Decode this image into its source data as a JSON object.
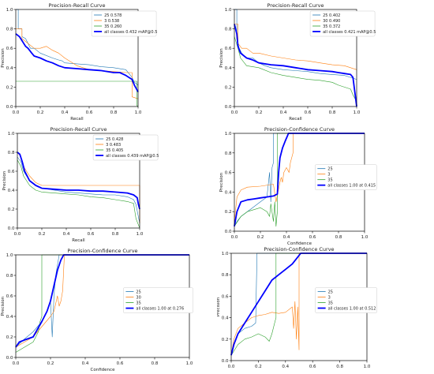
{
  "chart_data": [
    {
      "type": "line",
      "title": "Precision-Recall Curve",
      "xlabel": "Recall",
      "ylabel": "Precision",
      "xlim": [
        0,
        1
      ],
      "ylim": [
        0,
        1
      ],
      "xticks": [
        "0.0",
        "0.2",
        "0.4",
        "0.6",
        "0.8",
        "1.0"
      ],
      "yticks": [
        "0.0",
        "0.2",
        "0.4",
        "0.6",
        "0.8",
        "1.0"
      ],
      "legend_position": "top-right",
      "grid": false,
      "series": [
        {
          "name": "25 0.578",
          "color": "#1f77b4",
          "width": 0.6,
          "x": [
            0,
            0.02,
            0.02,
            0.05,
            0.05,
            0.08,
            0.1,
            0.12,
            0.15,
            0.2,
            0.3,
            0.35,
            0.38,
            0.4,
            0.5,
            0.6,
            0.7,
            0.8,
            0.9,
            0.95,
            0.97,
            1.0
          ],
          "y": [
            1.0,
            1.0,
            0.8,
            0.8,
            0.72,
            0.7,
            0.65,
            0.6,
            0.6,
            0.55,
            0.5,
            0.48,
            0.47,
            0.45,
            0.44,
            0.43,
            0.41,
            0.4,
            0.38,
            0.3,
            0.25,
            0.22
          ]
        },
        {
          "name": "3 0.538",
          "color": "#ff7f0e",
          "width": 0.6,
          "x": [
            0,
            0.05,
            0.05,
            0.1,
            0.15,
            0.2,
            0.25,
            0.3,
            0.35,
            0.4,
            0.5,
            0.6,
            0.7,
            0.8,
            0.9,
            0.95,
            0.95,
            1.0
          ],
          "y": [
            0.8,
            0.8,
            0.7,
            0.65,
            0.6,
            0.6,
            0.62,
            0.58,
            0.55,
            0.5,
            0.42,
            0.38,
            0.37,
            0.36,
            0.35,
            0.35,
            0.1,
            0.08
          ]
        },
        {
          "name": "35 0.260",
          "color": "#2ca02c",
          "width": 0.6,
          "x": [
            0,
            0.99,
            0.99,
            1.0
          ],
          "y": [
            0.26,
            0.26,
            0.01,
            0.0
          ]
        },
        {
          "name": "all classes 0.432 mAP@0.5",
          "color": "#0000ff",
          "width": 1.8,
          "x": [
            0,
            0.03,
            0.05,
            0.08,
            0.1,
            0.13,
            0.15,
            0.2,
            0.25,
            0.3,
            0.35,
            0.4,
            0.5,
            0.6,
            0.7,
            0.8,
            0.85,
            0.9,
            0.95,
            0.97,
            1.0
          ],
          "y": [
            0.75,
            0.72,
            0.68,
            0.62,
            0.6,
            0.55,
            0.52,
            0.5,
            0.47,
            0.45,
            0.42,
            0.4,
            0.39,
            0.38,
            0.37,
            0.35,
            0.35,
            0.32,
            0.28,
            0.22,
            0.15
          ]
        }
      ]
    },
    {
      "type": "line",
      "title": "Precision-Recall Curve",
      "xlabel": "Recall",
      "ylabel": "Precision",
      "xlim": [
        0,
        1
      ],
      "ylim": [
        0,
        1
      ],
      "xticks": [
        "0.0",
        "0.2",
        "0.4",
        "0.6",
        "0.8",
        "1.0"
      ],
      "yticks": [
        "0.0",
        "0.2",
        "0.4",
        "0.6",
        "0.8",
        "1.0"
      ],
      "legend_position": "top-right",
      "grid": false,
      "series": [
        {
          "name": "25 0.402",
          "color": "#1f77b4",
          "width": 0.6,
          "x": [
            0,
            0.02,
            0.02,
            0.04,
            0.06,
            0.1,
            0.15,
            0.2,
            0.25,
            0.3,
            0.4,
            0.5,
            0.6,
            0.7,
            0.8,
            0.9,
            0.95,
            1.0
          ],
          "y": [
            1.0,
            1.0,
            0.7,
            0.6,
            0.55,
            0.5,
            0.5,
            0.45,
            0.42,
            0.4,
            0.38,
            0.37,
            0.36,
            0.34,
            0.33,
            0.32,
            0.3,
            0.28
          ]
        },
        {
          "name": "30 0.490",
          "color": "#ff7f0e",
          "width": 0.6,
          "x": [
            0,
            0.03,
            0.03,
            0.06,
            0.1,
            0.15,
            0.2,
            0.3,
            0.4,
            0.5,
            0.6,
            0.7,
            0.8,
            0.9,
            0.95,
            1.0
          ],
          "y": [
            0.85,
            0.85,
            0.65,
            0.6,
            0.6,
            0.55,
            0.55,
            0.52,
            0.5,
            0.48,
            0.47,
            0.45,
            0.43,
            0.42,
            0.4,
            0.38
          ]
        },
        {
          "name": "35 0.372",
          "color": "#2ca02c",
          "width": 0.6,
          "x": [
            0,
            0.03,
            0.05,
            0.1,
            0.2,
            0.3,
            0.4,
            0.5,
            0.6,
            0.7,
            0.8,
            0.85,
            0.9,
            0.95,
            0.97,
            1.0
          ],
          "y": [
            0.72,
            0.6,
            0.5,
            0.42,
            0.4,
            0.35,
            0.32,
            0.3,
            0.28,
            0.27,
            0.25,
            0.22,
            0.2,
            0.18,
            0.12,
            0.05
          ]
        },
        {
          "name": "all classes 0.421 mAP@0.5",
          "color": "#0000ff",
          "width": 1.8,
          "x": [
            0,
            0.02,
            0.03,
            0.05,
            0.1,
            0.15,
            0.2,
            0.3,
            0.4,
            0.5,
            0.6,
            0.7,
            0.8,
            0.85,
            0.9,
            0.95,
            0.97,
            1.0
          ],
          "y": [
            0.85,
            0.75,
            0.62,
            0.55,
            0.5,
            0.48,
            0.45,
            0.43,
            0.42,
            0.4,
            0.38,
            0.37,
            0.36,
            0.35,
            0.34,
            0.33,
            0.3,
            0.0
          ]
        }
      ]
    },
    {
      "type": "line",
      "title": "Precision-Recall Curve",
      "xlabel": "Recall",
      "ylabel": "Precision",
      "xlim": [
        0,
        1
      ],
      "ylim": [
        0,
        1
      ],
      "xticks": [
        "0.0",
        "0.2",
        "0.4",
        "0.6",
        "0.8",
        "1.0"
      ],
      "yticks": [
        "0.0",
        "0.2",
        "0.4",
        "0.6",
        "0.8",
        "1.0"
      ],
      "legend_position": "top-right",
      "grid": false,
      "series": [
        {
          "name": "25 0.428",
          "color": "#1f77b4",
          "width": 0.6,
          "x": [
            0,
            0.03,
            0.05,
            0.1,
            0.15,
            0.2,
            0.3,
            0.4,
            0.5,
            0.6,
            0.7,
            0.8,
            0.9,
            0.95,
            0.97,
            1.0
          ],
          "y": [
            0.75,
            0.7,
            0.6,
            0.5,
            0.45,
            0.42,
            0.4,
            0.38,
            0.37,
            0.36,
            0.35,
            0.35,
            0.33,
            0.3,
            0.25,
            0.05
          ]
        },
        {
          "name": "3 0.483",
          "color": "#ff7f0e",
          "width": 0.6,
          "x": [
            0,
            0.03,
            0.05,
            0.1,
            0.15,
            0.2,
            0.3,
            0.4,
            0.5,
            0.6,
            0.7,
            0.8,
            0.9,
            1.0,
            1.0
          ],
          "y": [
            0.8,
            0.75,
            0.65,
            0.55,
            0.48,
            0.45,
            0.45,
            0.45,
            0.45,
            0.45,
            0.45,
            0.45,
            0.45,
            0.45,
            0.05
          ]
        },
        {
          "name": "35 0.405",
          "color": "#2ca02c",
          "width": 0.6,
          "x": [
            0,
            0.03,
            0.05,
            0.1,
            0.15,
            0.2,
            0.3,
            0.4,
            0.5,
            0.6,
            0.7,
            0.8,
            0.9,
            0.95,
            0.97,
            1.0
          ],
          "y": [
            0.72,
            0.65,
            0.55,
            0.45,
            0.4,
            0.38,
            0.37,
            0.36,
            0.35,
            0.33,
            0.32,
            0.3,
            0.28,
            0.26,
            0.1,
            0.0
          ]
        },
        {
          "name": "all classes 0.439 mAP@0.5",
          "color": "#0000ff",
          "width": 1.8,
          "x": [
            0,
            0.02,
            0.04,
            0.06,
            0.1,
            0.15,
            0.2,
            0.3,
            0.4,
            0.5,
            0.6,
            0.7,
            0.8,
            0.9,
            0.95,
            0.98,
            0.99,
            1.0
          ],
          "y": [
            0.8,
            0.78,
            0.7,
            0.6,
            0.5,
            0.45,
            0.42,
            0.41,
            0.4,
            0.4,
            0.39,
            0.39,
            0.38,
            0.37,
            0.35,
            0.32,
            0.25,
            0.2
          ]
        }
      ]
    },
    {
      "type": "line",
      "title": "Precision-Confidence Curve",
      "xlabel": "Confidence",
      "ylabel": "Precision",
      "xlim": [
        0,
        1
      ],
      "ylim": [
        0,
        1
      ],
      "xticks": [
        "0.0",
        "0.2",
        "0.4",
        "0.6",
        "0.8",
        "1.0"
      ],
      "yticks": [
        "0.0",
        "0.2",
        "0.4",
        "0.6",
        "0.8",
        "1.0"
      ],
      "legend_position": "right",
      "grid": false,
      "series": [
        {
          "name": "25",
          "color": "#1f77b4",
          "width": 0.6,
          "x": [
            0,
            0.02,
            0.05,
            0.1,
            0.15,
            0.2,
            0.25,
            0.27,
            0.28,
            0.29,
            0.3,
            0.3,
            0.32,
            0.35,
            0.4,
            1.0
          ],
          "y": [
            0.05,
            0.1,
            0.15,
            0.2,
            0.25,
            0.3,
            0.35,
            0.6,
            0.3,
            0.65,
            0.7,
            1.0,
            1.0,
            1.0,
            1.0,
            1.0
          ]
        },
        {
          "name": "3",
          "color": "#ff7f0e",
          "width": 0.6,
          "x": [
            0,
            0.02,
            0.05,
            0.1,
            0.2,
            0.3,
            0.32,
            0.35,
            0.36,
            0.37,
            0.38,
            0.4,
            0.42,
            0.43,
            0.45,
            0.45,
            1.0
          ],
          "y": [
            0.1,
            0.35,
            0.42,
            0.45,
            0.46,
            0.48,
            0.3,
            0.5,
            0.55,
            0.5,
            0.6,
            0.65,
            0.6,
            0.7,
            0.8,
            1.0,
            1.0
          ]
        },
        {
          "name": "35",
          "color": "#2ca02c",
          "width": 0.6,
          "x": [
            0,
            0.05,
            0.1,
            0.15,
            0.2,
            0.25,
            0.27,
            0.28,
            0.3,
            0.31,
            0.32,
            0.33,
            0.33,
            1.0
          ],
          "y": [
            0.05,
            0.15,
            0.2,
            0.22,
            0.24,
            0.2,
            0.15,
            0.28,
            0.1,
            0.3,
            0.05,
            0.2,
            1.0,
            1.0
          ]
        },
        {
          "name": "all classes 1.00 at 0.415",
          "color": "#0000ff",
          "width": 1.8,
          "x": [
            0,
            0.02,
            0.05,
            0.1,
            0.15,
            0.2,
            0.25,
            0.3,
            0.33,
            0.34,
            0.35,
            0.37,
            0.39,
            0.41,
            0.415,
            1.0
          ],
          "y": [
            0.05,
            0.2,
            0.3,
            0.32,
            0.33,
            0.34,
            0.35,
            0.36,
            0.38,
            0.6,
            0.75,
            0.85,
            0.92,
            0.98,
            1.0,
            1.0
          ]
        }
      ]
    },
    {
      "type": "line",
      "title": "Precision-Confidence Curve",
      "xlabel": "Confidence",
      "ylabel": "Precision",
      "xlim": [
        0,
        1
      ],
      "ylim": [
        0,
        1
      ],
      "xticks": [
        "0.0",
        "0.2",
        "0.4",
        "0.6",
        "0.8",
        "1.0"
      ],
      "yticks": [
        "0.0",
        "0.2",
        "0.4",
        "0.6",
        "0.8",
        "1.0"
      ],
      "legend_position": "right",
      "grid": false,
      "series": [
        {
          "name": "25",
          "color": "#1f77b4",
          "width": 0.6,
          "x": [
            0,
            0.05,
            0.1,
            0.15,
            0.18,
            0.2,
            0.21,
            0.22,
            0.23,
            0.25,
            1.0
          ],
          "y": [
            0.1,
            0.18,
            0.25,
            0.35,
            0.45,
            0.55,
            0.2,
            0.6,
            0.8,
            1.0,
            1.0
          ]
        },
        {
          "name": "30",
          "color": "#ff7f0e",
          "width": 0.6,
          "x": [
            0,
            0.05,
            0.1,
            0.15,
            0.2,
            0.22,
            0.24,
            0.25,
            0.26,
            0.27,
            0.28,
            1.0
          ],
          "y": [
            0.1,
            0.15,
            0.2,
            0.3,
            0.4,
            0.45,
            0.6,
            0.5,
            0.55,
            0.65,
            1.0,
            1.0
          ]
        },
        {
          "name": "35",
          "color": "#2ca02c",
          "width": 0.6,
          "x": [
            0,
            0.05,
            0.1,
            0.13,
            0.14,
            0.15,
            0.15,
            1.0
          ],
          "y": [
            0.05,
            0.1,
            0.15,
            0.25,
            0.35,
            0.4,
            1.0,
            1.0
          ]
        },
        {
          "name": "all classes 1.00 at 0.276",
          "color": "#0000ff",
          "width": 1.8,
          "x": [
            0,
            0.02,
            0.05,
            0.1,
            0.15,
            0.18,
            0.2,
            0.22,
            0.24,
            0.26,
            0.276,
            1.0
          ],
          "y": [
            0.1,
            0.15,
            0.17,
            0.2,
            0.35,
            0.45,
            0.55,
            0.7,
            0.85,
            0.95,
            1.0,
            1.0
          ]
        }
      ]
    },
    {
      "type": "line",
      "title": "Precision-Confidence Curve",
      "xlabel": "Confidence",
      "ylabel": "Precision",
      "xlim": [
        0,
        1
      ],
      "ylim": [
        0,
        1
      ],
      "xticks": [
        "0.0",
        "0.2",
        "0.4",
        "0.6",
        "0.8",
        "1.0"
      ],
      "yticks": [
        "0.0",
        "0.2",
        "0.4",
        "0.6",
        "0.8",
        "1.0"
      ],
      "legend_position": "right",
      "grid": false,
      "series": [
        {
          "name": "25",
          "color": "#1f77b4",
          "width": 0.6,
          "x": [
            0,
            0.02,
            0.05,
            0.1,
            0.15,
            0.18,
            0.19,
            0.2,
            0.22,
            0.25,
            0.3,
            1.0
          ],
          "y": [
            0.05,
            0.15,
            0.25,
            0.3,
            0.32,
            0.35,
            1.0,
            1.0,
            1.0,
            1.0,
            1.0,
            1.0
          ]
        },
        {
          "name": "3",
          "color": "#ff7f0e",
          "width": 0.6,
          "x": [
            0,
            0.02,
            0.05,
            0.1,
            0.15,
            0.2,
            0.25,
            0.3,
            0.35,
            0.4,
            0.45,
            0.46,
            0.47,
            0.48,
            0.49,
            0.5,
            0.5,
            1.0
          ],
          "y": [
            0.05,
            0.2,
            0.3,
            0.35,
            0.4,
            0.42,
            0.43,
            0.45,
            0.44,
            0.45,
            0.5,
            0.3,
            0.55,
            0.2,
            0.5,
            0.1,
            1.0,
            1.0
          ]
        },
        {
          "name": "35",
          "color": "#2ca02c",
          "width": 0.6,
          "x": [
            0,
            0.05,
            0.1,
            0.15,
            0.2,
            0.25,
            0.28,
            0.3,
            0.31,
            0.32,
            0.33,
            0.33,
            1.0
          ],
          "y": [
            0.05,
            0.15,
            0.2,
            0.22,
            0.25,
            0.22,
            0.18,
            0.25,
            0.3,
            0.35,
            0.4,
            1.0,
            1.0
          ]
        },
        {
          "name": "all classes 1.00 at 0.512",
          "color": "#0000ff",
          "width": 1.8,
          "x": [
            0,
            0.02,
            0.05,
            0.1,
            0.15,
            0.2,
            0.25,
            0.3,
            0.35,
            0.4,
            0.45,
            0.5,
            0.512,
            1.0
          ],
          "y": [
            0.05,
            0.15,
            0.25,
            0.35,
            0.45,
            0.55,
            0.65,
            0.75,
            0.8,
            0.85,
            0.9,
            0.98,
            1.0,
            1.0
          ]
        }
      ]
    }
  ]
}
